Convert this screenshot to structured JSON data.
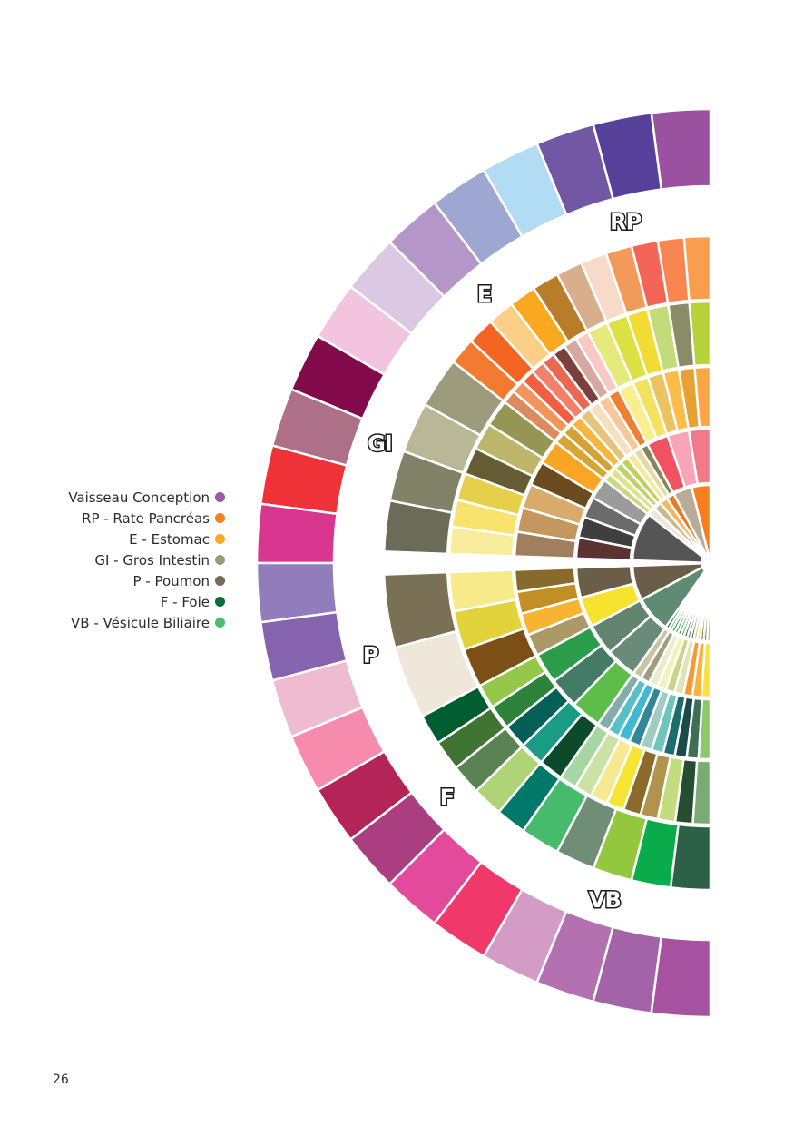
{
  "legend": [
    {
      "label": "Vaisseau Conception",
      "color": "#9b59a6"
    },
    {
      "label": "RP - Rate Pancréas",
      "color": "#f47f20"
    },
    {
      "label": "E - Estomac",
      "color": "#f9a825"
    },
    {
      "label": "GI - Gros Intestin",
      "color": "#9a9a7a"
    },
    {
      "label": "P - Poumon",
      "color": "#776b55"
    },
    {
      "label": "F - Foie",
      "color": "#0b6e3c"
    },
    {
      "label": "VB - Vésicule Biliaire",
      "color": "#47bf6b"
    }
  ],
  "page_number": "26",
  "sections": [
    {
      "label": "RP",
      "start": -90,
      "end": -62
    },
    {
      "label": "E",
      "start": -62,
      "end": -38
    },
    {
      "label": "GI",
      "start": -38,
      "end": -2
    },
    {
      "label": "P",
      "start": 2,
      "end": 28
    },
    {
      "label": "F",
      "start": 28,
      "end": 55
    },
    {
      "label": "VB",
      "start": 55,
      "end": 90
    }
  ],
  "outer_ring_colors": [
    "#9a52a0",
    "#56419a",
    "#7257a5",
    "#b2dcf3",
    "#9ea7d1",
    "#b496c9",
    "#dbc9e3",
    "#f2c4dd",
    "#820a4a",
    "#ae7087",
    "#ee3238",
    "#d93690",
    "#917dbb",
    "#8563af",
    "#eebbd0",
    "#f68bad",
    "#b52456",
    "#ab3e80",
    "#e34a9c",
    "#f0386a",
    "#d49bc7",
    "#b371b1",
    "#a363a8",
    "#a752a1"
  ],
  "section_colors": {
    "RP": {
      "r4": [
        "#fa9d4e",
        "#f98650",
        "#f46558",
        "#f29a5a",
        "#f8dac9",
        "#d8ae8d"
      ],
      "r3": [
        "#b6d33c",
        "#8a8c68",
        "#c3db79",
        "#f2db32",
        "#dbe142",
        "#e6e97c"
      ],
      "r2": [
        "#f9a548",
        "#e7a131",
        "#fbbd47",
        "#ecc363",
        "#f4e160",
        "#f9ef8c"
      ],
      "r1": [
        "#f07a8a",
        "#f7a5b7",
        "#f05262"
      ],
      "r0": [
        "#f68020",
        "#b8ab98"
      ]
    },
    "E": {
      "r4": [
        "#b97d29",
        "#f9a81f",
        "#fbcf86",
        "#f46523",
        "#f37b31"
      ],
      "r3": [
        "#f9c7c4",
        "#d6a8a0",
        "#7d3f3c",
        "#ea6752",
        "#f47f6b",
        "#f25e42",
        "#f0965d",
        "#db8b5e"
      ],
      "r2": [
        "#ee7f33",
        "#f7c69a",
        "#f8dfbe",
        "#e5c37a",
        "#f9b43e",
        "#d2a237",
        "#d7a534"
      ],
      "r1": [
        "#858558",
        "#e5d8a0",
        "#f9e6a0",
        "#bfd157",
        "#c0d06a",
        "#dfe28a",
        "#ccd87e"
      ],
      "r0": [
        "#e9781f",
        "#f1b566",
        "#ceb88a",
        "#eee6d6"
      ]
    },
    "GI": {
      "r4": [
        "#9c9c7d",
        "#b9b795",
        "#828269",
        "#6b6b58"
      ],
      "r3": [
        "#959555",
        "#bdb56a",
        "#665c34",
        "#e6cf4b",
        "#f8e36f",
        "#f9ec9f"
      ],
      "r2": [
        "#f9a627",
        "#6b4b1e",
        "#d8aa6c",
        "#c3975e",
        "#a17e5e"
      ],
      "r1": [
        "#9b9b9b",
        "#6b6b6b",
        "#3f3f3f",
        "#5c3333"
      ],
      "r0": [
        "#555555"
      ]
    },
    "P": {
      "r4": [
        "#797055",
        "#eee7da"
      ],
      "r3": [
        "#f7ea8a",
        "#e2d23b",
        "#7c4f17"
      ],
      "r2": [
        "#886a2c",
        "#c18f25",
        "#f7b432",
        "#ab9a66"
      ],
      "r1": [
        "#6b5e48",
        "#f7e32f"
      ],
      "r0": [
        "#6b5e48"
      ]
    },
    "F": {
      "r4": [
        "#005d2f",
        "#407432",
        "#5b8252",
        "#aed477",
        "#00796b"
      ],
      "r3": [
        "#95c84a",
        "#2d833b",
        "#036056",
        "#199b84",
        "#0d4a2c"
      ],
      "r2": [
        "#2b9d4a",
        "#437b66",
        "#5ebd48"
      ],
      "r1": [
        "#64836e",
        "#6a8b7a"
      ],
      "r0": [
        "#5f8b73"
      ]
    },
    "VB": {
      "r4": [
        "#46bb6b",
        "#6f8d77",
        "#93c83e",
        "#0aab4b",
        "#2c6148"
      ],
      "r3": [
        "#a6d7a3",
        "#cae3a4",
        "#f7e991",
        "#f6e532",
        "#8d6a2a",
        "#b2934d",
        "#c2dc7e",
        "#234e30",
        "#7bab75"
      ],
      "r2": [
        "#84acaa",
        "#55c0c5",
        "#3fb9d1",
        "#33869a",
        "#9fcdc5",
        "#6fc5be",
        "#1c6d6d",
        "#1b4a4a",
        "#3e6f55",
        "#8dc76a"
      ],
      "r1": [
        "#c7c69f",
        "#9d9d7f",
        "#e7efc8",
        "#f0f4bc",
        "#cad58a",
        "#dfe6b5",
        "#f59a3a",
        "#f8b23a",
        "#fde046"
      ],
      "r0": [
        "#00553a",
        "#6dc34f",
        "#058043",
        "#5f8b50",
        "#368646",
        "#46b157",
        "#2d5f4b",
        "#6b7b5b",
        "#2d6f37",
        "#c9c36c",
        "#f1e25e",
        "#4f772b",
        "#687a38",
        "#a4c63e"
      ]
    }
  }
}
